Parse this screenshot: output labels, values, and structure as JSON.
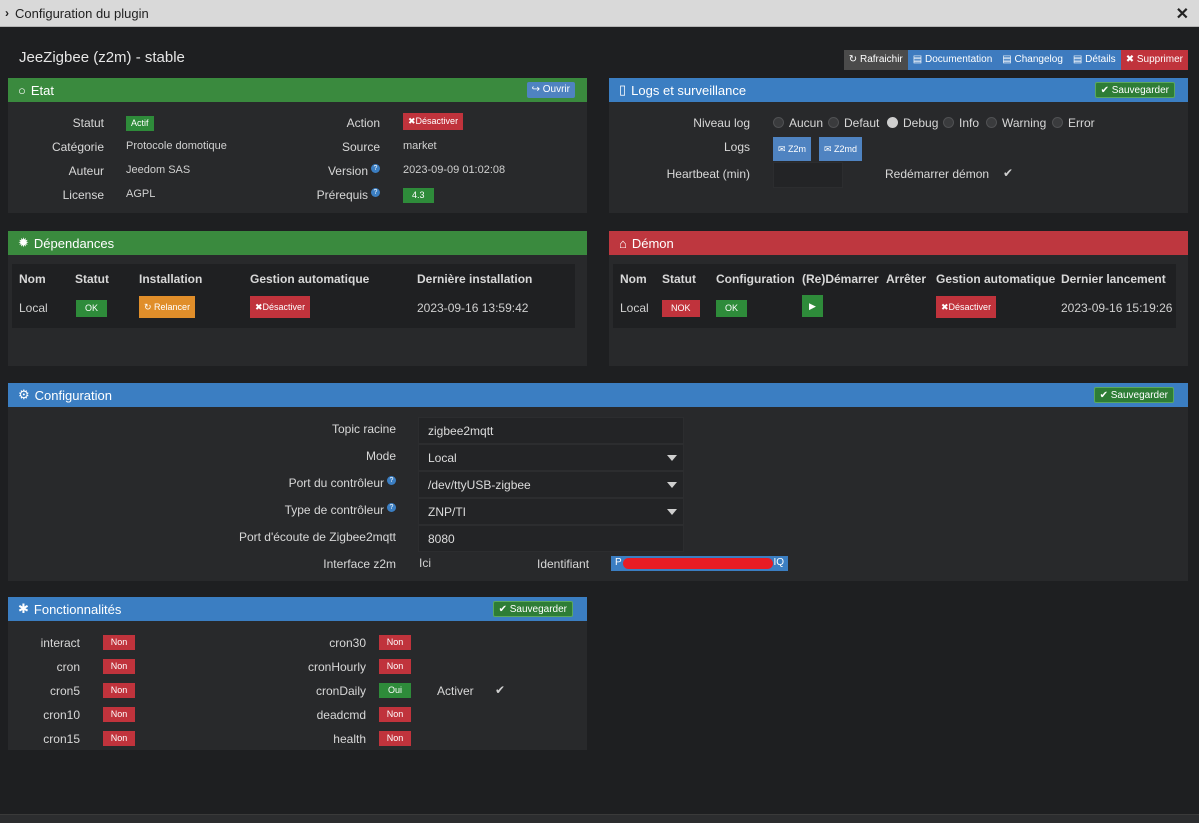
{
  "window": {
    "title": "Configuration du plugin"
  },
  "plugin": {
    "title": "JeeZigbee (z2m) - stable"
  },
  "toolbar": {
    "refresh": "Rafraichir",
    "documentation": "Documentation",
    "changelog": "Changelog",
    "details": "Détails",
    "delete": "Supprimer"
  },
  "etat": {
    "title": "Etat",
    "open_btn": "Ouvrir",
    "statut_label": "Statut",
    "statut_value": "Actif",
    "action_label": "Action",
    "action_btn": "Désactiver",
    "categorie_label": "Catégorie",
    "categorie_value": "Protocole domotique",
    "source_label": "Source",
    "source_value": "market",
    "auteur_label": "Auteur",
    "auteur_value": "Jeedom SAS",
    "version_label": "Version",
    "version_value": "2023-09-09 01:02:08",
    "license_label": "License",
    "license_value": "AGPL",
    "prerequis_label": "Prérequis",
    "prerequis_value": "4.3"
  },
  "logs": {
    "title": "Logs et surveillance",
    "save_btn": "Sauvegarder",
    "niveau_label": "Niveau log",
    "levels": [
      "Aucun",
      "Defaut",
      "Debug",
      "Info",
      "Warning",
      "Error"
    ],
    "selected_level": "Debug",
    "logs_label": "Logs",
    "log_btn1": "Z2m",
    "log_btn2": "Z2md",
    "heartbeat_label": "Heartbeat (min)",
    "heartbeat_value": "",
    "restart_label": "Redémarrer démon"
  },
  "deps": {
    "title": "Dépendances",
    "headers": [
      "Nom",
      "Statut",
      "Installation",
      "Gestion automatique",
      "Dernière installation"
    ],
    "row": {
      "nom": "Local",
      "statut": "OK",
      "install_btn": "Relancer",
      "auto_btn": "Désactiver",
      "last": "2023-09-16 13:59:42"
    }
  },
  "demon": {
    "title": "Démon",
    "headers": [
      "Nom",
      "Statut",
      "Configuration",
      "(Re)Démarrer",
      "Arrêter",
      "Gestion automatique",
      "Dernier lancement"
    ],
    "row": {
      "nom": "Local",
      "statut": "NOK",
      "config": "OK",
      "auto_btn": "Désactiver",
      "last": "2023-09-16 15:19:26"
    }
  },
  "config": {
    "title": "Configuration",
    "save_btn": "Sauvegarder",
    "topic_label": "Topic racine",
    "topic_value": "zigbee2mqtt",
    "mode_label": "Mode",
    "mode_value": "Local",
    "port_label": "Port du contrôleur",
    "port_value": "/dev/ttyUSB-zigbee",
    "type_label": "Type de contrôleur",
    "type_value": "ZNP/TI",
    "listen_label": "Port d'écoute de Zigbee2mqtt",
    "listen_value": "8080",
    "iface_label": "Interface z2m",
    "iface_value": "Ici",
    "ident_label": "Identifiant",
    "ident_prefix": "P",
    "ident_suffix": "IQ"
  },
  "fonc": {
    "title": "Fonctionnalités",
    "save_btn": "Sauvegarder",
    "left": [
      {
        "name": "interact",
        "value": "Non"
      },
      {
        "name": "cron",
        "value": "Non"
      },
      {
        "name": "cron5",
        "value": "Non"
      },
      {
        "name": "cron10",
        "value": "Non"
      },
      {
        "name": "cron15",
        "value": "Non"
      }
    ],
    "right": [
      {
        "name": "cron30",
        "value": "Non"
      },
      {
        "name": "cronHourly",
        "value": "Non"
      },
      {
        "name": "cronDaily",
        "value": "Oui"
      },
      {
        "name": "deadcmd",
        "value": "Non"
      },
      {
        "name": "health",
        "value": "Non"
      }
    ],
    "activate_label": "Activer"
  },
  "colors": {
    "green": "#2e8b3a",
    "red": "#c0333c",
    "blue": "#3b7ec2",
    "orange": "#e08e2a"
  }
}
